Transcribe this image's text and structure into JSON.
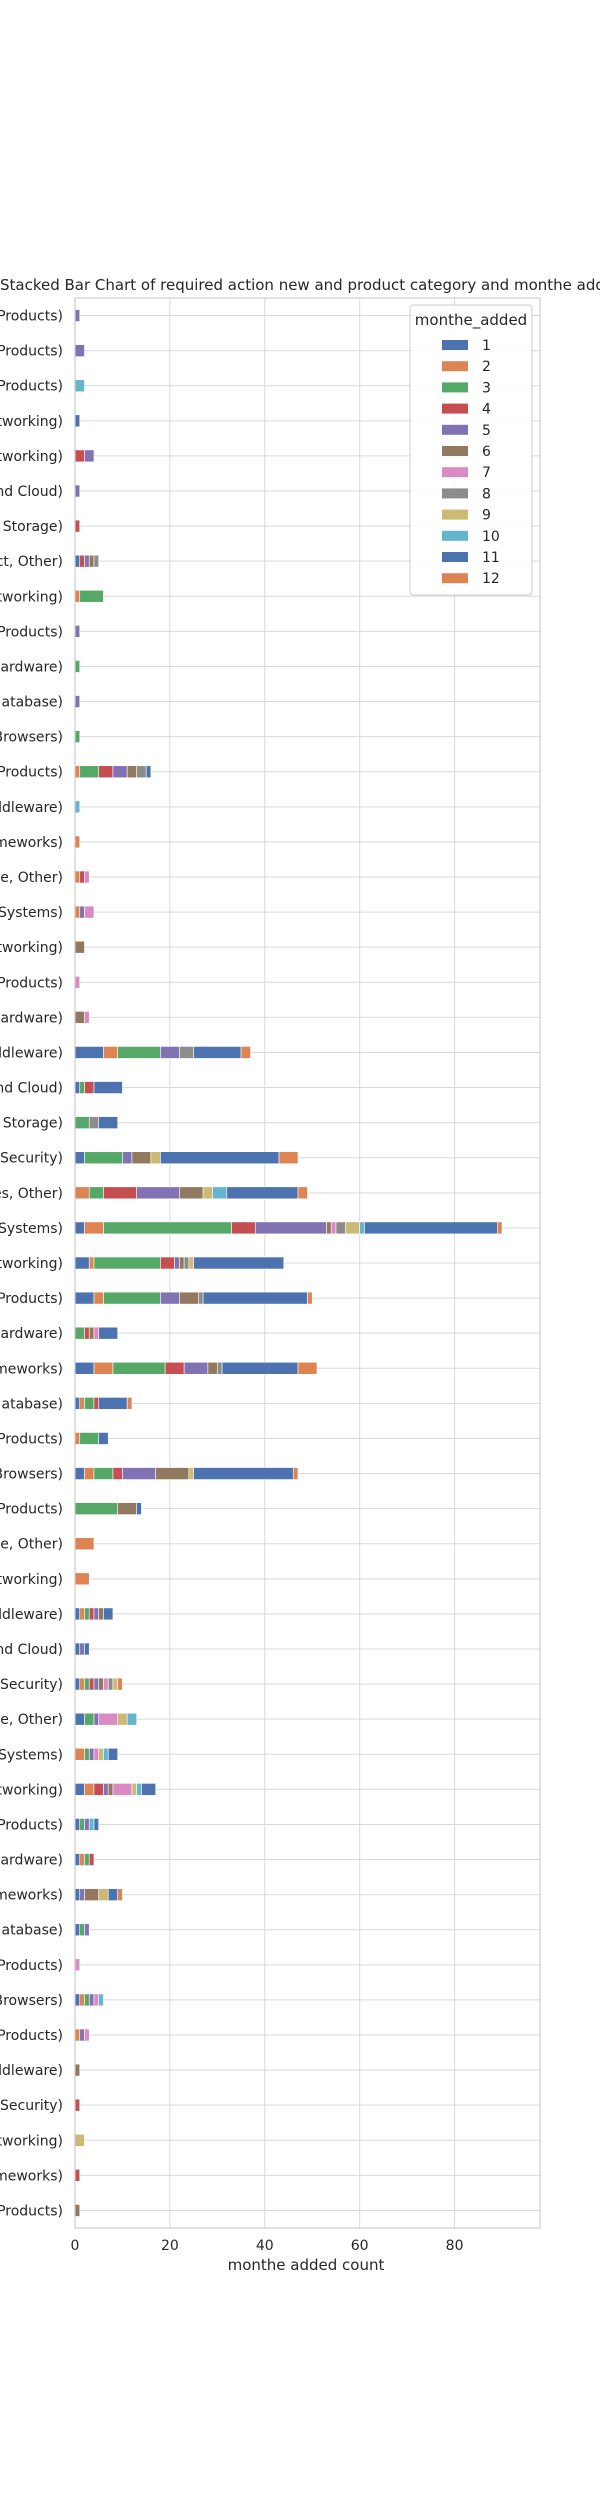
{
  "chart_data": {
    "type": "bar",
    "orientation": "horizontal",
    "stacked": true,
    "title": "Stacked Bar Chart of  required action new and product category and monthe added",
    "xlabel": "monthe added count",
    "ylabel": "",
    "xlim": [
      0,
      98
    ],
    "xticks": [
      0,
      20,
      40,
      60,
      80
    ],
    "grid": true,
    "legend": {
      "title": "monthe_added",
      "position": "top-right",
      "entries": [
        "1",
        "2",
        "3",
        "4",
        "5",
        "6",
        "7",
        "8",
        "9",
        "10",
        "11",
        "12"
      ]
    },
    "series_colors": [
      "#4c72b0",
      "#dd8452",
      "#55a868",
      "#c44e52",
      "#8172b3",
      "#937860",
      "#da8bc3",
      "#8c8c8c",
      "#ccb974",
      "#64b5cd",
      "#4c72b0",
      "#dd8452"
    ],
    "categories": [
      "Products)",
      "Products)",
      "Products)",
      "tworking)",
      "tworking)",
      "nd Cloud)",
      "Storage)",
      "ct, Other)",
      "tworking)",
      "Products)",
      "ardware)",
      "atabase)",
      "Browsers)",
      "Products)",
      "ddleware)",
      "meworks)",
      "e, Other)",
      "Systems)",
      "tworking)",
      "Products)",
      "ardware)",
      "ddleware)",
      "nd Cloud)",
      "Storage)",
      "Security)",
      "es, Other)",
      "Systems)",
      "tworking)",
      "Products)",
      "ardware)",
      "meworks)",
      "atabase)",
      "Products)",
      "Browsers)",
      "Products)",
      "e, Other)",
      "tworking)",
      "ddleware)",
      "nd Cloud)",
      "Security)",
      "e, Other)",
      "Systems)",
      "tworking)",
      "Products)",
      "ardware)",
      "meworks)",
      "atabase)",
      "Products)",
      "Browsers)",
      "Products)",
      "ddleware)",
      "Security)",
      "tworking)",
      "meworks)",
      "Products)"
    ],
    "series": [
      {
        "name": "1",
        "values": [
          0,
          0,
          0,
          1,
          0,
          0,
          0,
          1,
          0,
          0,
          0,
          0,
          0,
          0,
          0,
          0,
          0,
          0,
          0,
          0,
          0,
          6,
          1,
          0,
          2,
          0,
          2,
          3,
          4,
          0,
          4,
          1,
          0,
          2,
          0,
          0,
          0,
          1,
          1,
          1,
          2,
          0,
          2,
          1,
          1,
          1,
          1,
          0,
          1,
          0,
          0,
          0,
          0,
          0,
          0
        ]
      },
      {
        "name": "2",
        "values": [
          0,
          0,
          0,
          0,
          0,
          0,
          0,
          0,
          1,
          0,
          0,
          0,
          0,
          1,
          0,
          1,
          1,
          1,
          0,
          0,
          0,
          3,
          0,
          0,
          0,
          3,
          4,
          1,
          2,
          0,
          4,
          1,
          1,
          2,
          0,
          4,
          3,
          1,
          0,
          1,
          0,
          2,
          2,
          0,
          1,
          0,
          0,
          0,
          1,
          1,
          0,
          0,
          0,
          0,
          0
        ]
      },
      {
        "name": "3",
        "values": [
          0,
          0,
          0,
          0,
          0,
          0,
          0,
          0,
          5,
          0,
          1,
          0,
          1,
          4,
          0,
          0,
          0,
          0,
          0,
          0,
          0,
          9,
          1,
          3,
          8,
          3,
          27,
          14,
          12,
          2,
          11,
          2,
          4,
          4,
          9,
          0,
          0,
          1,
          0,
          1,
          2,
          1,
          0,
          1,
          1,
          0,
          1,
          0,
          1,
          0,
          0,
          0,
          0,
          0,
          0
        ]
      },
      {
        "name": "4",
        "values": [
          0,
          0,
          0,
          0,
          2,
          0,
          1,
          1,
          0,
          0,
          0,
          0,
          0,
          3,
          0,
          0,
          1,
          0,
          0,
          0,
          0,
          0,
          2,
          0,
          0,
          7,
          5,
          3,
          0,
          1,
          4,
          1,
          0,
          2,
          0,
          0,
          0,
          1,
          0,
          1,
          0,
          0,
          2,
          0,
          1,
          0,
          0,
          0,
          0,
          0,
          0,
          1,
          0,
          1,
          0
        ]
      },
      {
        "name": "5",
        "values": [
          1,
          2,
          0,
          0,
          2,
          1,
          0,
          1,
          0,
          1,
          0,
          1,
          0,
          3,
          0,
          0,
          0,
          1,
          0,
          0,
          0,
          4,
          0,
          0,
          2,
          9,
          15,
          1,
          4,
          0,
          5,
          0,
          0,
          7,
          0,
          0,
          0,
          1,
          1,
          1,
          1,
          1,
          1,
          1,
          0,
          1,
          1,
          0,
          1,
          1,
          0,
          0,
          0,
          0,
          0
        ]
      },
      {
        "name": "6",
        "values": [
          0,
          0,
          0,
          0,
          0,
          0,
          0,
          1,
          0,
          0,
          0,
          0,
          0,
          2,
          0,
          0,
          0,
          0,
          2,
          0,
          2,
          0,
          0,
          0,
          4,
          5,
          1,
          1,
          4,
          1,
          2,
          0,
          0,
          7,
          4,
          0,
          0,
          1,
          0,
          1,
          0,
          0,
          1,
          0,
          0,
          3,
          0,
          0,
          0,
          0,
          1,
          0,
          0,
          0,
          1
        ]
      },
      {
        "name": "7",
        "values": [
          0,
          0,
          0,
          0,
          0,
          0,
          0,
          0,
          0,
          0,
          0,
          0,
          0,
          0,
          0,
          0,
          1,
          2,
          0,
          1,
          1,
          0,
          0,
          0,
          0,
          0,
          1,
          0,
          0,
          1,
          0,
          0,
          0,
          0,
          0,
          0,
          0,
          0,
          0,
          1,
          4,
          1,
          4,
          0,
          0,
          0,
          0,
          1,
          1,
          1,
          0,
          0,
          0,
          0,
          0
        ]
      },
      {
        "name": "8",
        "values": [
          0,
          0,
          0,
          0,
          0,
          0,
          0,
          1,
          0,
          0,
          0,
          0,
          0,
          2,
          0,
          0,
          0,
          0,
          0,
          0,
          0,
          3,
          0,
          2,
          0,
          0,
          2,
          1,
          1,
          0,
          1,
          0,
          0,
          0,
          0,
          0,
          0,
          0,
          0,
          1,
          0,
          0,
          0,
          0,
          0,
          0,
          0,
          0,
          0,
          0,
          0,
          0,
          0,
          0,
          0
        ]
      },
      {
        "name": "9",
        "values": [
          0,
          0,
          0,
          0,
          0,
          0,
          0,
          0,
          0,
          0,
          0,
          0,
          0,
          0,
          0,
          0,
          0,
          0,
          0,
          0,
          0,
          0,
          0,
          0,
          2,
          2,
          3,
          1,
          0,
          0,
          0,
          0,
          0,
          1,
          0,
          0,
          0,
          0,
          0,
          1,
          2,
          1,
          1,
          0,
          0,
          2,
          0,
          0,
          0,
          0,
          0,
          0,
          2,
          0,
          0
        ]
      },
      {
        "name": "10",
        "values": [
          0,
          0,
          2,
          0,
          0,
          0,
          0,
          0,
          0,
          0,
          0,
          0,
          0,
          0,
          1,
          0,
          0,
          0,
          0,
          0,
          0,
          0,
          0,
          0,
          0,
          3,
          1,
          0,
          0,
          0,
          0,
          0,
          0,
          0,
          0,
          0,
          0,
          0,
          0,
          0,
          2,
          1,
          1,
          1,
          0,
          0,
          0,
          0,
          1,
          0,
          0,
          0,
          0,
          0,
          0
        ]
      },
      {
        "name": "11",
        "values": [
          0,
          0,
          0,
          0,
          0,
          0,
          0,
          0,
          0,
          0,
          0,
          0,
          0,
          1,
          0,
          0,
          0,
          0,
          0,
          0,
          0,
          10,
          6,
          4,
          25,
          15,
          28,
          19,
          22,
          4,
          16,
          6,
          2,
          21,
          1,
          0,
          0,
          2,
          1,
          0,
          0,
          2,
          3,
          1,
          0,
          2,
          0,
          0,
          0,
          0,
          0,
          0,
          0,
          0,
          0
        ]
      },
      {
        "name": "12",
        "values": [
          0,
          0,
          0,
          0,
          0,
          0,
          0,
          0,
          0,
          0,
          0,
          0,
          0,
          0,
          0,
          0,
          0,
          0,
          0,
          0,
          0,
          2,
          0,
          0,
          4,
          2,
          1,
          0,
          1,
          0,
          4,
          1,
          0,
          1,
          0,
          0,
          0,
          0,
          0,
          1,
          0,
          0,
          0,
          0,
          0,
          1,
          0,
          0,
          0,
          0,
          0,
          0,
          0,
          0,
          0
        ]
      }
    ]
  }
}
